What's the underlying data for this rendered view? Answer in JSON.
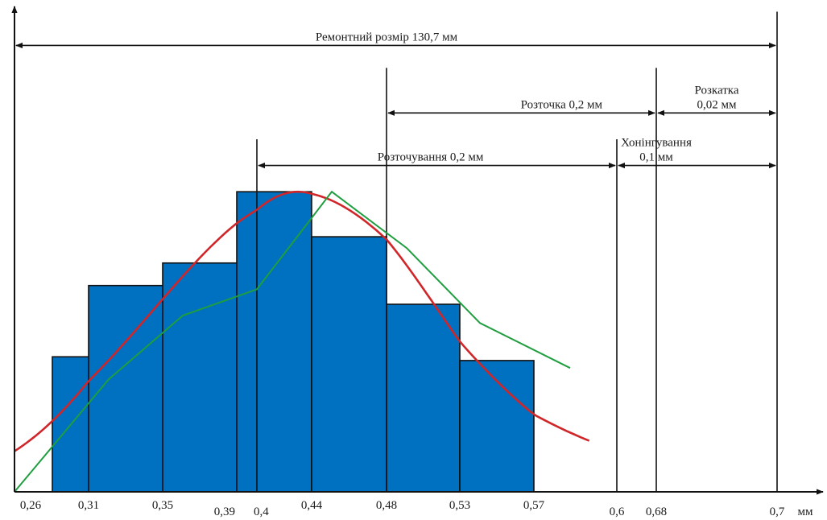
{
  "chart_data": {
    "type": "bar",
    "title": "",
    "xlabel": "мм",
    "ylabel": "",
    "grid": false,
    "colors": {
      "bars": "#0070c0",
      "bar_stroke": "#111111",
      "normal_curve": "#d0262a",
      "polygon": "#1f9e3f",
      "axis": "#111111"
    },
    "bins": [
      {
        "from": 0.26,
        "to": 0.31,
        "value": 0.36
      },
      {
        "from": 0.31,
        "to": 0.35,
        "value": 0.55
      },
      {
        "from": 0.35,
        "to": 0.39,
        "value": 0.61
      },
      {
        "from": 0.39,
        "to": 0.44,
        "value": 0.8
      },
      {
        "from": 0.44,
        "to": 0.48,
        "value": 0.68
      },
      {
        "from": 0.48,
        "to": 0.53,
        "value": 0.5
      },
      {
        "from": 0.53,
        "to": 0.57,
        "value": 0.35
      }
    ],
    "polygon": [
      {
        "x": 0.26,
        "y": 0.0
      },
      {
        "x": 0.31,
        "y": 0.3
      },
      {
        "x": 0.35,
        "y": 0.47
      },
      {
        "x": 0.39,
        "y": 0.54
      },
      {
        "x": 0.44,
        "y": 0.8
      },
      {
        "x": 0.48,
        "y": 0.65
      },
      {
        "x": 0.53,
        "y": 0.45
      },
      {
        "x": 0.57,
        "y": 0.33
      }
    ],
    "normal_curve": {
      "mean": 0.43,
      "sd": 0.085,
      "peak": 0.8,
      "x_from": 0.26,
      "x_to": 0.59
    },
    "x_ticks": [
      {
        "label": "0,26",
        "x": 0.26
      },
      {
        "label": "0,31",
        "x": 0.31
      },
      {
        "label": "0,35",
        "x": 0.35
      },
      {
        "label": "0,39",
        "x": 0.39
      },
      {
        "label": "0,4",
        "x": 0.4
      },
      {
        "label": "0,44",
        "x": 0.44
      },
      {
        "label": "0,48",
        "x": 0.48
      },
      {
        "label": "0,53",
        "x": 0.53
      },
      {
        "label": "0,57",
        "x": 0.57
      },
      {
        "label": "0,6",
        "x": 0.6
      },
      {
        "label": "0,68",
        "x": 0.68
      },
      {
        "label": "0,7",
        "x": 0.7
      }
    ],
    "vertical_markers": [
      {
        "x": 0.4,
        "top": 0.94
      },
      {
        "x": 0.48,
        "top": 1.13
      },
      {
        "x": 0.6,
        "top": 0.94
      },
      {
        "x": 0.68,
        "top": 1.13
      },
      {
        "x": 0.7,
        "top": 1.28
      }
    ],
    "dimension_lines": [
      {
        "from": 0.26,
        "to": 0.7,
        "level": 1.19,
        "text": [
          "Ремонтний розмір 130,7 мм"
        ],
        "center": 0.48
      },
      {
        "from": 0.48,
        "to": 0.68,
        "level": 1.01,
        "text": [
          "Розточка 0,2 мм"
        ],
        "center": 0.58
      },
      {
        "from": 0.68,
        "to": 0.7,
        "level": 1.01,
        "text": [
          "Розкатка",
          "0,02 мм"
        ],
        "center": 0.69
      },
      {
        "from": 0.4,
        "to": 0.6,
        "level": 0.87,
        "text": [
          "Розточування 0,2 мм"
        ],
        "center": 0.51
      },
      {
        "from": 0.6,
        "to": 0.7,
        "level": 0.87,
        "text": [
          "Хонінгування",
          "0,1 мм"
        ],
        "center": 0.68
      }
    ]
  }
}
